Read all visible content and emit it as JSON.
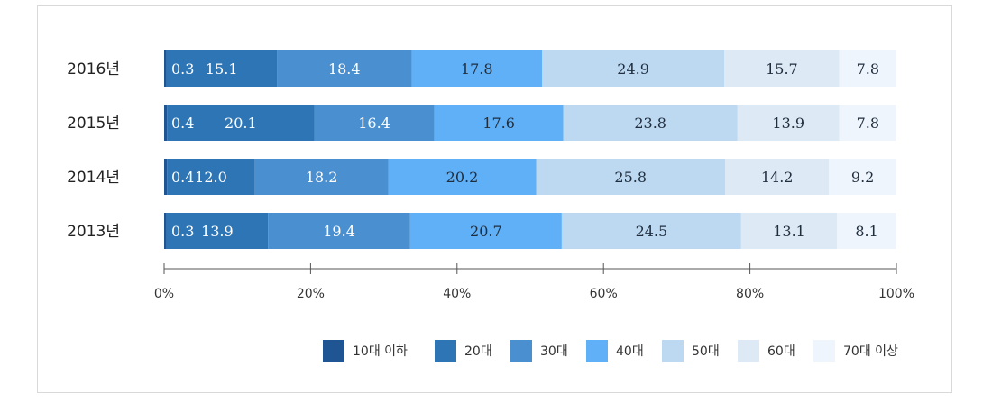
{
  "chart_data": {
    "type": "bar",
    "orientation": "horizontal-stacked-100",
    "categories": [
      "2016년",
      "2015년",
      "2014년",
      "2013년"
    ],
    "series": [
      {
        "name": "10대 이하",
        "color": "#1f5593",
        "values": [
          0.3,
          0.4,
          0.4,
          0.3
        ]
      },
      {
        "name": "20대",
        "color": "#2e75b6",
        "values": [
          15.1,
          20.1,
          12.0,
          13.9
        ]
      },
      {
        "name": "30대",
        "color": "#4a90d0",
        "values": [
          18.4,
          16.4,
          18.2,
          19.4
        ]
      },
      {
        "name": "40대",
        "color": "#5fb0f7",
        "values": [
          17.8,
          17.6,
          20.2,
          20.7
        ]
      },
      {
        "name": "50대",
        "color": "#bdd9f1",
        "values": [
          24.9,
          23.8,
          25.8,
          24.5
        ]
      },
      {
        "name": "60대",
        "color": "#dde9f5",
        "values": [
          15.7,
          13.9,
          14.2,
          13.1
        ]
      },
      {
        "name": "70대 이상",
        "color": "#eef5fd",
        "values": [
          7.8,
          7.8,
          9.2,
          8.1
        ]
      }
    ],
    "data_labels": [
      [
        "0.3",
        "15.1",
        "18.4",
        "17.8",
        "24.9",
        "15.7",
        "7.8"
      ],
      [
        "0.4",
        "20.1",
        "16.4",
        "17.6",
        "23.8",
        "13.9",
        "7.8"
      ],
      [
        "0.4",
        "12.0",
        "18.2",
        "20.2",
        "25.8",
        "14.2",
        "9.2"
      ],
      [
        "0.3",
        "13.9",
        "19.4",
        "20.7",
        "24.5",
        "13.1",
        "8.1"
      ]
    ],
    "x_ticks": [
      "0%",
      "20%",
      "40%",
      "60%",
      "80%",
      "100%"
    ],
    "xlim": [
      0,
      100
    ],
    "legend_position": "bottom-right",
    "grid": false
  }
}
